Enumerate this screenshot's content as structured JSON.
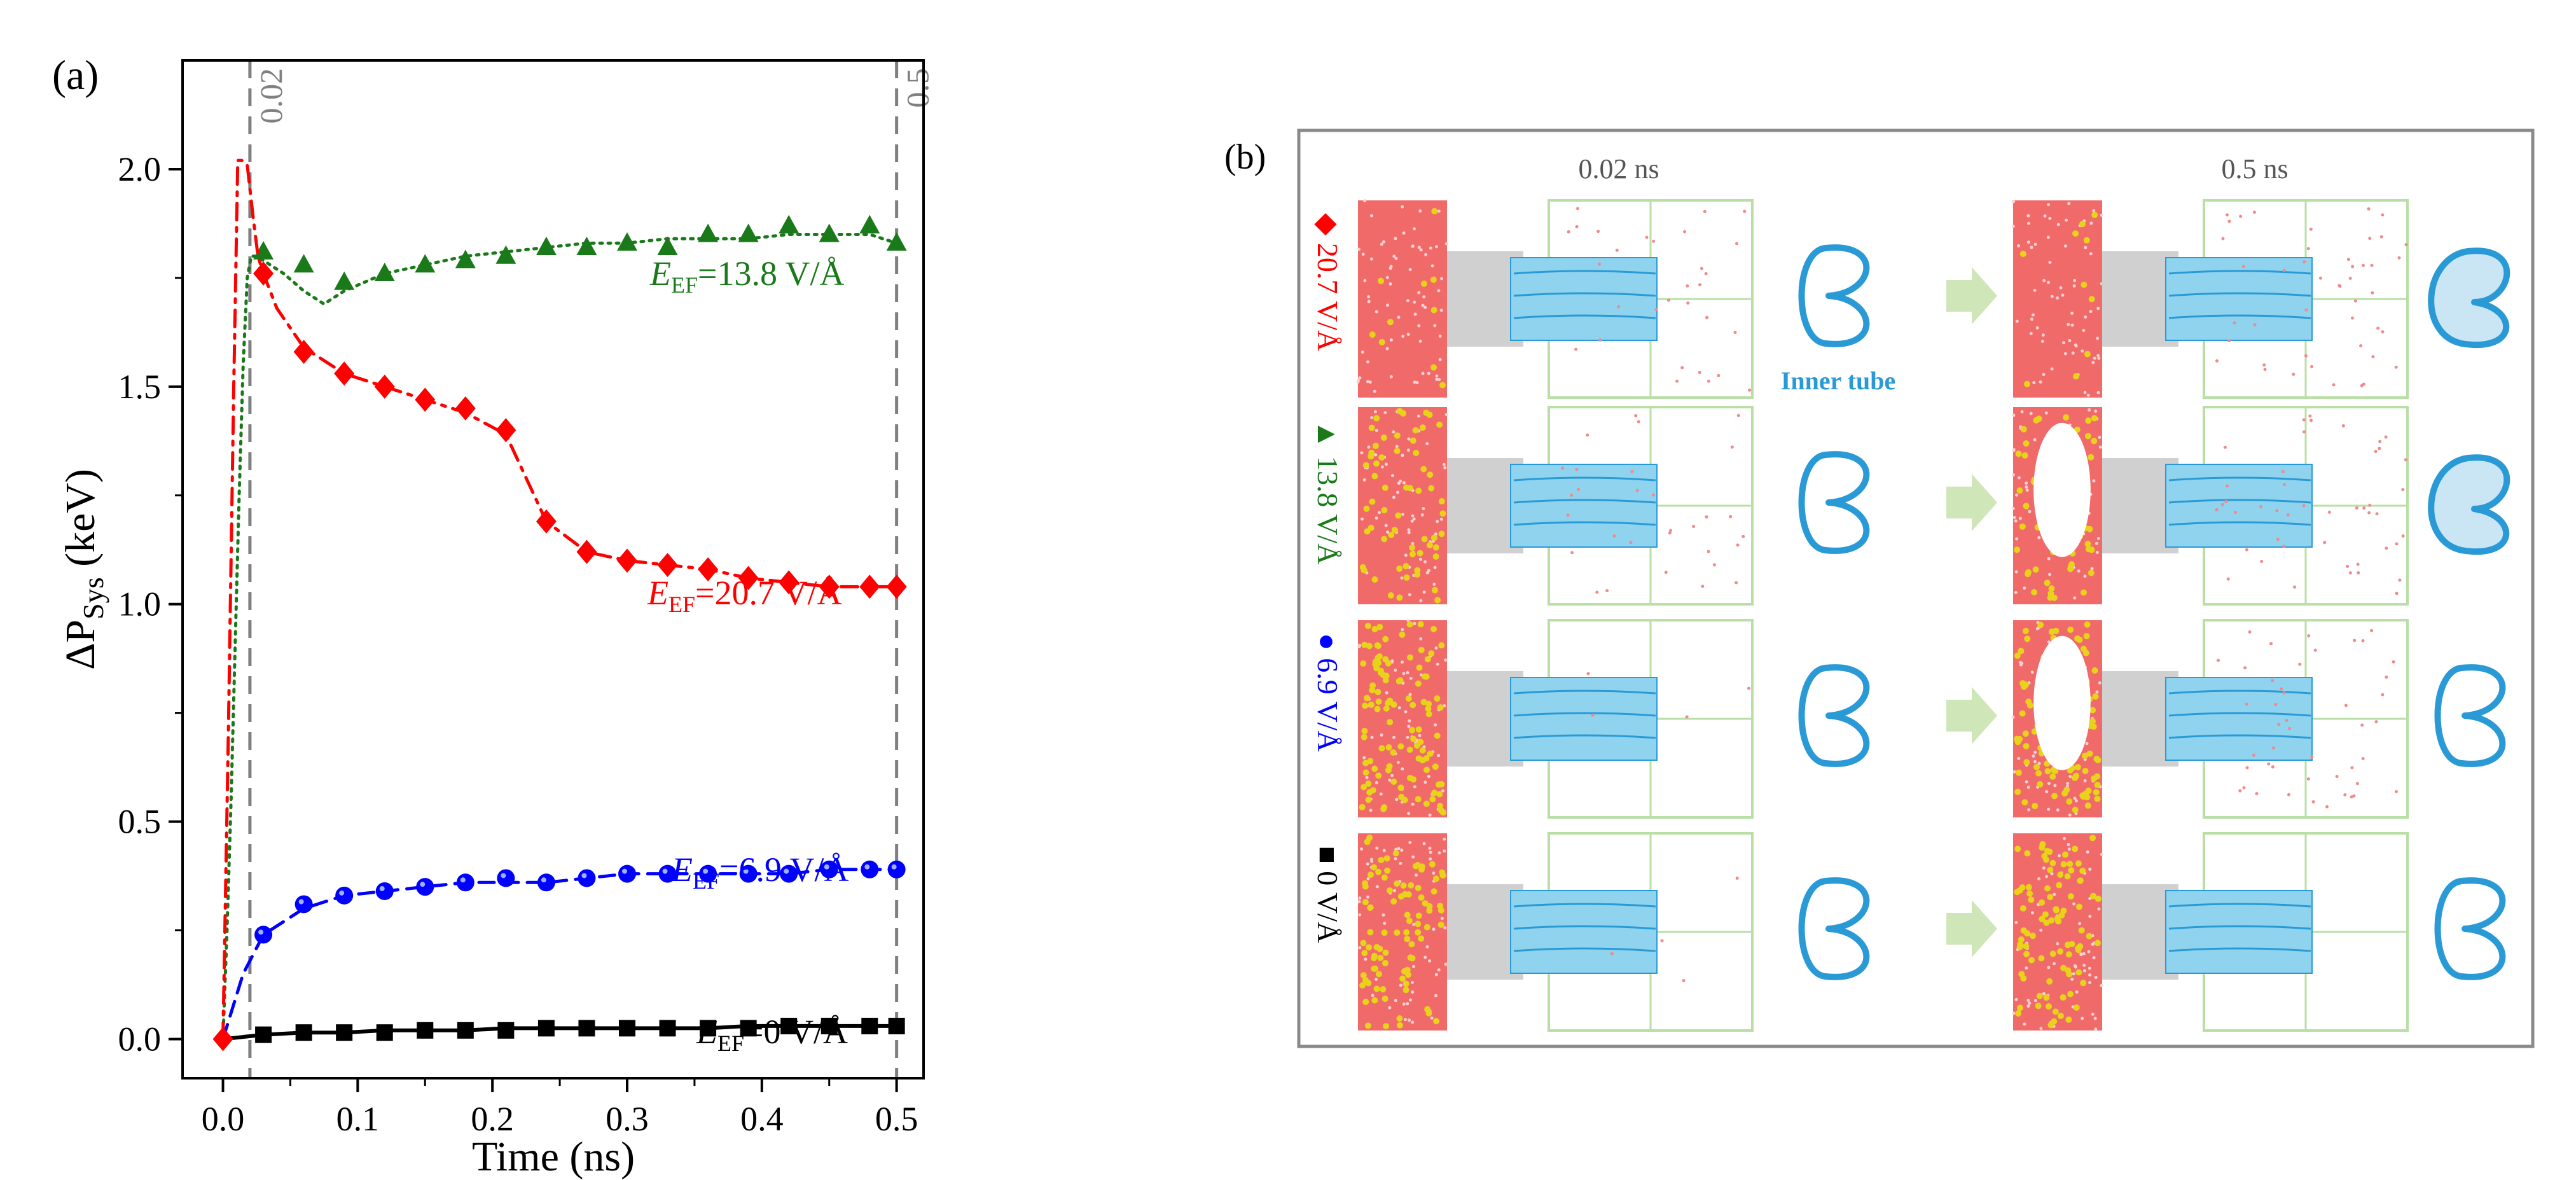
{
  "chart_data": {
    "type": "line",
    "panel_label": "(a)",
    "xlabel": "Time (ns)",
    "ylabel": "ΔP",
    "ylabel_sub": "Sys",
    "ylabel_unit": " (keV)",
    "xlim": [
      -0.03,
      0.52
    ],
    "ylim": [
      -0.09,
      2.25
    ],
    "x_ticks": [
      0.0,
      0.1,
      0.2,
      0.3,
      0.4,
      0.5
    ],
    "x_tick_labels": [
      "0.0",
      "0.1",
      "0.2",
      "0.3",
      "0.4",
      "0.5"
    ],
    "y_ticks": [
      0.0,
      0.5,
      1.0,
      1.5,
      2.0
    ],
    "y_tick_labels": [
      "0.0",
      "0.5",
      "1.0",
      "1.5",
      "2.0"
    ],
    "vlines": [
      {
        "x": 0.02,
        "label": "0.02"
      },
      {
        "x": 0.5,
        "label": "0.5"
      }
    ],
    "series": [
      {
        "name": "=13.8 V/Å",
        "color": "#1a7a1a",
        "marker": "triangle",
        "line_style": "dotted",
        "line_x": [
          0,
          0.003,
          0.006,
          0.009,
          0.012,
          0.015,
          0.018,
          0.021,
          0.025,
          0.03,
          0.045,
          0.06,
          0.075,
          0.09,
          0.12,
          0.15,
          0.18,
          0.21,
          0.24,
          0.27,
          0.3,
          0.33,
          0.36,
          0.39,
          0.42,
          0.45,
          0.48,
          0.5
        ],
        "line_y": [
          0,
          0.25,
          0.55,
          0.9,
          1.25,
          1.55,
          1.75,
          1.8,
          1.8,
          1.79,
          1.76,
          1.72,
          1.69,
          1.72,
          1.76,
          1.78,
          1.8,
          1.81,
          1.82,
          1.83,
          1.83,
          1.84,
          1.84,
          1.84,
          1.85,
          1.85,
          1.85,
          1.83
        ],
        "marker_x": [
          0.03,
          0.06,
          0.09,
          0.12,
          0.15,
          0.18,
          0.21,
          0.24,
          0.27,
          0.3,
          0.33,
          0.36,
          0.39,
          0.42,
          0.45,
          0.48,
          0.5
        ],
        "marker_y": [
          1.81,
          1.78,
          1.74,
          1.76,
          1.78,
          1.79,
          1.8,
          1.82,
          1.82,
          1.83,
          1.82,
          1.85,
          1.85,
          1.87,
          1.85,
          1.87,
          1.83
        ]
      },
      {
        "name": "=20.7 V/Å",
        "color": "#ff0000",
        "marker": "diamond",
        "line_style": "dashdot",
        "line_x": [
          0,
          0.004,
          0.008,
          0.011,
          0.014,
          0.018,
          0.022,
          0.026,
          0.03,
          0.04,
          0.06,
          0.09,
          0.12,
          0.15,
          0.18,
          0.21,
          0.24,
          0.27,
          0.3,
          0.33,
          0.36,
          0.39,
          0.42,
          0.45,
          0.48,
          0.5
        ],
        "line_y": [
          0,
          0.7,
          1.5,
          2.02,
          2.02,
          2.01,
          1.9,
          1.8,
          1.76,
          1.68,
          1.59,
          1.53,
          1.5,
          1.47,
          1.44,
          1.39,
          1.19,
          1.12,
          1.1,
          1.09,
          1.08,
          1.06,
          1.05,
          1.04,
          1.04,
          1.04
        ],
        "marker_x": [
          0.03,
          0.06,
          0.09,
          0.12,
          0.15,
          0.18,
          0.21,
          0.24,
          0.27,
          0.3,
          0.33,
          0.36,
          0.39,
          0.42,
          0.45,
          0.48,
          0.5
        ],
        "marker_y": [
          1.76,
          1.58,
          1.53,
          1.5,
          1.47,
          1.45,
          1.4,
          1.19,
          1.12,
          1.1,
          1.09,
          1.08,
          1.06,
          1.05,
          1.04,
          1.04,
          1.04
        ]
      },
      {
        "name": "=6.9 V/Å",
        "color": "#0000ff",
        "marker": "circle",
        "line_style": "dashed",
        "line_x": [
          0,
          0.015,
          0.03,
          0.06,
          0.09,
          0.12,
          0.15,
          0.18,
          0.21,
          0.24,
          0.27,
          0.3,
          0.33,
          0.36,
          0.39,
          0.42,
          0.45,
          0.48,
          0.5
        ],
        "line_y": [
          0,
          0.15,
          0.24,
          0.3,
          0.33,
          0.34,
          0.35,
          0.36,
          0.36,
          0.36,
          0.37,
          0.38,
          0.38,
          0.38,
          0.38,
          0.38,
          0.39,
          0.39,
          0.39
        ],
        "marker_x": [
          0.03,
          0.06,
          0.09,
          0.12,
          0.15,
          0.18,
          0.21,
          0.24,
          0.27,
          0.3,
          0.33,
          0.36,
          0.39,
          0.42,
          0.45,
          0.48,
          0.5
        ],
        "marker_y": [
          0.24,
          0.31,
          0.33,
          0.34,
          0.35,
          0.36,
          0.37,
          0.36,
          0.37,
          0.38,
          0.38,
          0.38,
          0.38,
          0.38,
          0.39,
          0.39,
          0.39
        ]
      },
      {
        "name": "=0 V/Å",
        "color": "#000000",
        "marker": "square",
        "line_style": "solid",
        "line_x": [
          0,
          0.03,
          0.06,
          0.09,
          0.12,
          0.15,
          0.18,
          0.21,
          0.24,
          0.27,
          0.3,
          0.33,
          0.36,
          0.39,
          0.42,
          0.45,
          0.48,
          0.5
        ],
        "line_y": [
          0,
          0.01,
          0.015,
          0.015,
          0.02,
          0.02,
          0.02,
          0.025,
          0.025,
          0.025,
          0.025,
          0.025,
          0.025,
          0.03,
          0.03,
          0.03,
          0.03,
          0.03
        ],
        "marker_x": [
          0.03,
          0.06,
          0.09,
          0.12,
          0.15,
          0.18,
          0.21,
          0.24,
          0.27,
          0.3,
          0.33,
          0.36,
          0.39,
          0.42,
          0.45,
          0.48,
          0.5
        ],
        "marker_y": [
          0.01,
          0.015,
          0.015,
          0.015,
          0.02,
          0.02,
          0.02,
          0.025,
          0.025,
          0.025,
          0.025,
          0.025,
          0.025,
          0.03,
          0.03,
          0.03,
          0.03
        ]
      }
    ],
    "origin_point": {
      "x": 0,
      "y": 0,
      "color": "#ff0000"
    },
    "annotations": [
      {
        "text_main": "E",
        "text_sub": "EF",
        "text_rest": "=13.8 V/Å",
        "color": "#1a7a1a"
      },
      {
        "text_main": "E",
        "text_sub": "EF",
        "text_rest": "=20.7 V/Å",
        "color": "#ff0000"
      },
      {
        "text_main": "E",
        "text_sub": "EF",
        "text_rest": "=6.9 V/Å",
        "color": "#0000ff"
      },
      {
        "text_main": "E",
        "text_sub": "EF",
        "text_rest": "=0 V/Å",
        "color": "#000000"
      }
    ]
  },
  "panel_b": {
    "label": "(b)",
    "time_labels": [
      "0.02 ns",
      "0.5 ns"
    ],
    "inner_tube_label": "Inner tube",
    "rows": [
      {
        "label": "20.7 V/Å",
        "marker": "◆",
        "color": "#ff0000"
      },
      {
        "label": "13.8 V/Å",
        "marker": "▲",
        "color": "#1a7a1a"
      },
      {
        "label": "6.9 V/Å",
        "marker": "●",
        "color": "#0000ff"
      },
      {
        "label": "0 V/Å",
        "marker": "■",
        "color": "#000000"
      }
    ],
    "colors": {
      "water": "#f06a6a",
      "ion": "#e8d21a",
      "tube": "#8fd3ef",
      "tube_edge": "#2a9ad6",
      "gray_tube": "#c8c8c8",
      "grid": "#b9dfa6",
      "arrow": "#cfe6b8",
      "frame": "#8a8a8a"
    }
  }
}
